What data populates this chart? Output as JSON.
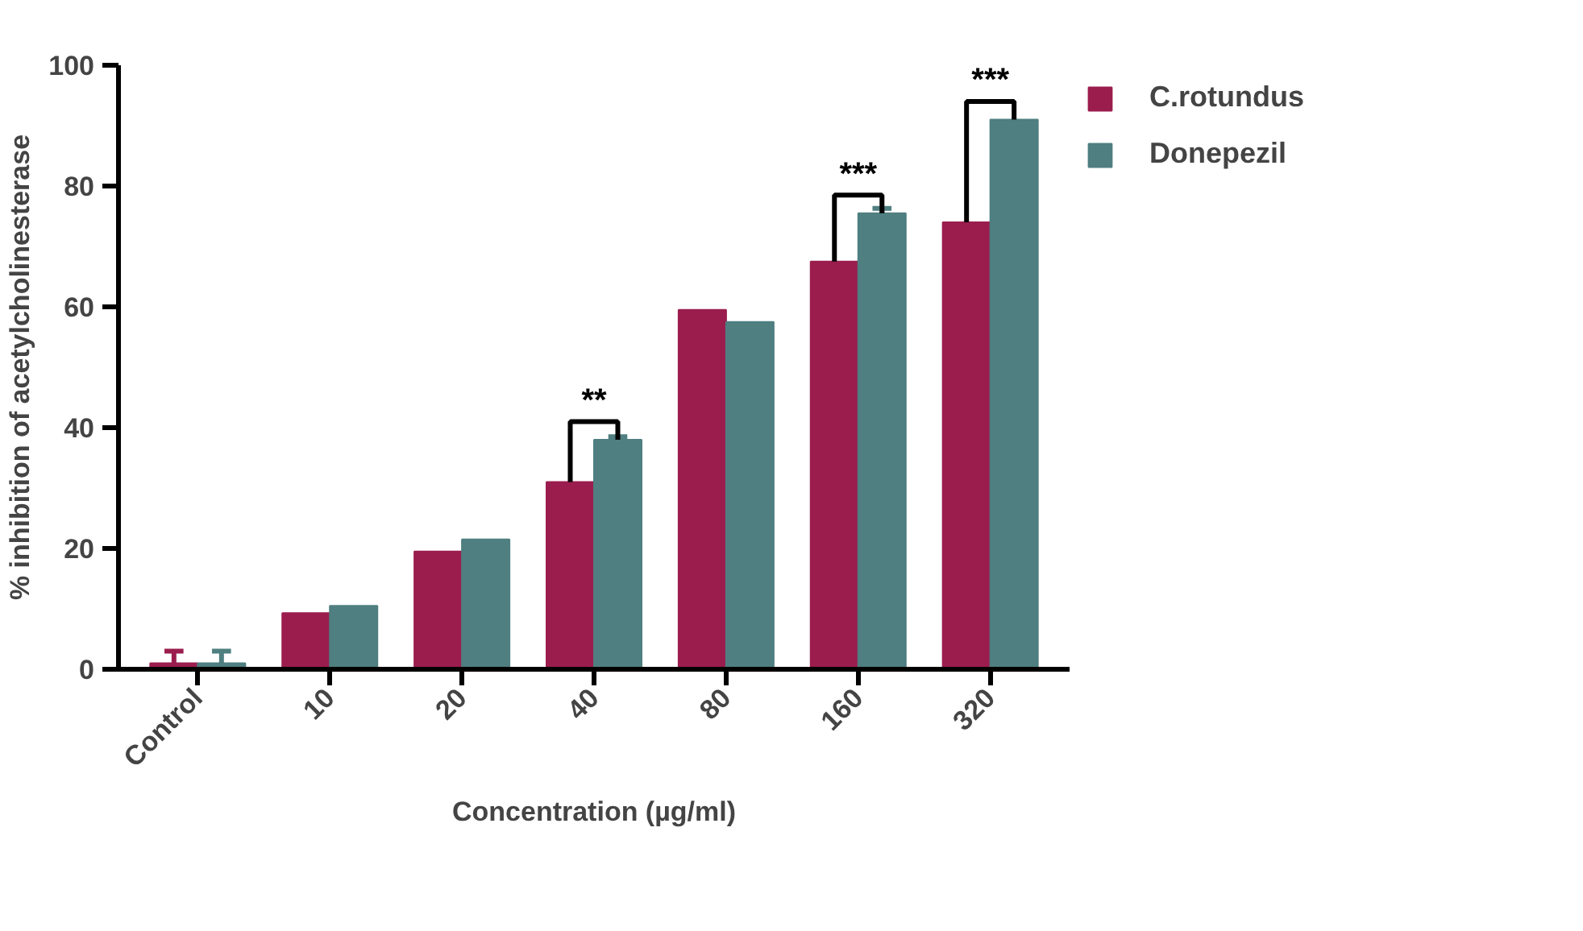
{
  "chart_data": {
    "type": "bar",
    "xlabel": "Concentration (µg/ml)",
    "ylabel": "% inhibition of acetylcholinesterase",
    "categories": [
      "Control",
      "10",
      "20",
      "40",
      "80",
      "160",
      "320"
    ],
    "series": [
      {
        "name": "C.rotundus",
        "color": "#9b1d4e",
        "values": [
          1,
          9.3,
          19.5,
          31,
          59.5,
          67.5,
          74
        ],
        "errors": [
          2,
          null,
          null,
          null,
          null,
          null,
          null
        ]
      },
      {
        "name": "Donepezil",
        "color": "#4f7f80",
        "values": [
          1,
          10.5,
          21.5,
          38,
          57.5,
          75.5,
          91
        ],
        "errors": [
          2,
          null,
          null,
          0.5,
          null,
          0.8,
          null
        ]
      }
    ],
    "ylim": [
      0,
      100
    ],
    "yticks": [
      0,
      20,
      40,
      60,
      80,
      100
    ],
    "grid": false,
    "legend": "top right",
    "annotations": [
      {
        "text": "**",
        "x": "40",
        "y": 38
      },
      {
        "text": "***",
        "x": "160",
        "y": 75.5
      },
      {
        "text": "***",
        "x": "320",
        "y": 91
      }
    ]
  }
}
